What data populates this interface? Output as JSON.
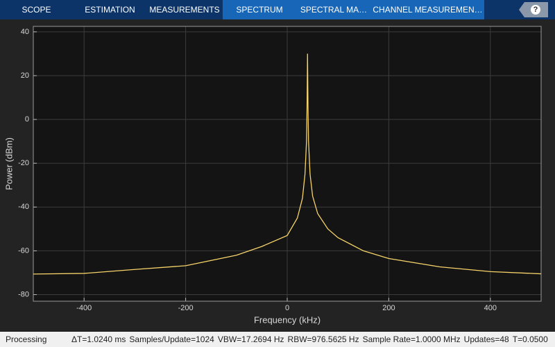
{
  "toolbar": {
    "tabs": [
      "SCOPE",
      "ESTIMATION",
      "MEASUREMENTS",
      "SPECTRUM",
      "SPECTRAL MA…",
      "CHANNEL MEASUREMEN…"
    ],
    "help": "?"
  },
  "chart_data": {
    "type": "line",
    "xlabel": "Frequency (kHz)",
    "ylabel": "Power (dBm)",
    "x": [
      -500,
      -400,
      -300,
      -200,
      -100,
      -50,
      0,
      20,
      30,
      35,
      38,
      39,
      40,
      41,
      42,
      45,
      50,
      60,
      80,
      100,
      150,
      200,
      300,
      400,
      500
    ],
    "series": [
      {
        "color": "#f7d46a",
        "values": [
          -70.6,
          -70.3,
          -68.5,
          -66.8,
          -62,
          -58,
          -53,
          -45,
          -36,
          -25,
          -10,
          5,
          30,
          5,
          -10,
          -25,
          -35,
          -43,
          -50,
          -54,
          -60,
          -63.5,
          -67.3,
          -69.5,
          -70.5
        ]
      }
    ],
    "xlim": [
      -500,
      500
    ],
    "ylim": [
      -83,
      42.5
    ],
    "xticks": [
      -400,
      -200,
      0,
      200,
      400
    ],
    "yticks": [
      -80,
      -60,
      -40,
      -20,
      0,
      20,
      40
    ],
    "grid": true
  },
  "status_bar": {
    "state": "Processing",
    "items": [
      "ΔT=1.0240 ms",
      "Samples/Update=1024",
      "VBW=17.2694 Hz",
      "RBW=976.5625 Hz",
      "Sample Rate=1.0000 MHz",
      "Updates=48",
      "T=0.0500"
    ]
  }
}
